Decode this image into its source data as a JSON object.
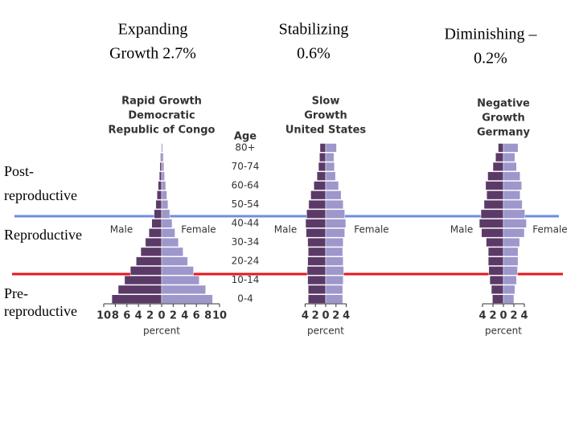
{
  "slide": {
    "headings": [
      [
        "Expanding",
        "Growth 2.7%"
      ],
      [
        "Stabilizing",
        "0.6%"
      ],
      [
        "Diminishing –",
        "0.2%"
      ]
    ],
    "stage_labels": [
      [
        "Post-",
        "reproductive"
      ],
      [
        "Reproductive"
      ],
      [
        "Pre-",
        "reproductive"
      ]
    ]
  },
  "chart_data": [
    {
      "type": "pyramid",
      "title": [
        "Rapid Growth",
        "Democratic",
        "Republic of Congo"
      ],
      "ylabel": "Age",
      "xlabel": "percent",
      "categories": [
        "0-4",
        null,
        "10-14",
        null,
        "20-24",
        null,
        "30-34",
        null,
        "40-44",
        null,
        "50-54",
        null,
        "60-64",
        null,
        "70-74",
        null,
        "80+"
      ],
      "xlim": [
        -10,
        10
      ],
      "xticks": [
        {
          "value": -10,
          "label": "10"
        },
        {
          "value": -8,
          "label": "8"
        },
        {
          "value": -6,
          "label": "6"
        },
        {
          "value": -4,
          "label": "4"
        },
        {
          "value": -2,
          "label": "2"
        },
        0,
        2,
        4,
        6,
        8,
        10
      ],
      "series": [
        {
          "name": "Male",
          "color": "#5b3a68",
          "values": [
            -8.6,
            -7.5,
            -6.4,
            -5.4,
            -4.4,
            -3.6,
            -2.8,
            -2.2,
            -1.7,
            -1.3,
            -1.0,
            -0.8,
            -0.6,
            -0.4,
            -0.3,
            -0.2,
            -0.1
          ]
        },
        {
          "name": "Female",
          "color": "#9d97cb",
          "values": [
            8.8,
            7.6,
            6.5,
            5.5,
            4.5,
            3.7,
            2.9,
            2.3,
            1.8,
            1.4,
            1.1,
            0.9,
            0.7,
            0.5,
            0.4,
            0.3,
            0.2
          ]
        }
      ]
    },
    {
      "type": "pyramid",
      "title": [
        "Slow",
        "Growth",
        "United States"
      ],
      "xlabel": "percent",
      "xlim": [
        -4,
        4
      ],
      "xticks": [
        {
          "value": -4,
          "label": "4"
        },
        {
          "value": -2,
          "label": "2"
        },
        0,
        2,
        4
      ],
      "series": [
        {
          "name": "Male",
          "color": "#5b3a68",
          "values": [
            -3.4,
            -3.4,
            -3.5,
            -3.6,
            -3.5,
            -3.4,
            -3.5,
            -3.8,
            -3.9,
            -3.7,
            -3.3,
            -2.9,
            -2.3,
            -1.7,
            -1.4,
            -1.2,
            -1.1
          ]
        },
        {
          "name": "Female",
          "color": "#9d97cb",
          "values": [
            3.3,
            3.3,
            3.4,
            3.5,
            3.4,
            3.3,
            3.4,
            3.7,
            3.9,
            3.7,
            3.4,
            3.0,
            2.5,
            1.9,
            1.7,
            1.6,
            2.1
          ]
        }
      ]
    },
    {
      "type": "pyramid",
      "title": [
        "Negative",
        "Growth",
        "Germany"
      ],
      "xlabel": "percent",
      "xlim": [
        -4,
        4
      ],
      "xticks": [
        {
          "value": -4,
          "label": "4"
        },
        {
          "value": -2,
          "label": "2"
        },
        0,
        2,
        4
      ],
      "series": [
        {
          "name": "Male",
          "color": "#5b3a68",
          "values": [
            -2.1,
            -2.3,
            -2.6,
            -2.8,
            -2.9,
            -2.9,
            -3.3,
            -4.2,
            -4.6,
            -4.3,
            -3.7,
            -3.2,
            -3.4,
            -3.0,
            -2.0,
            -1.5,
            -1.0
          ]
        },
        {
          "name": "Female",
          "color": "#9d97cb",
          "values": [
            2.0,
            2.2,
            2.5,
            2.7,
            2.8,
            2.8,
            3.1,
            4.0,
            4.4,
            4.1,
            3.6,
            3.2,
            3.5,
            3.2,
            2.5,
            2.2,
            2.8
          ]
        }
      ]
    }
  ]
}
